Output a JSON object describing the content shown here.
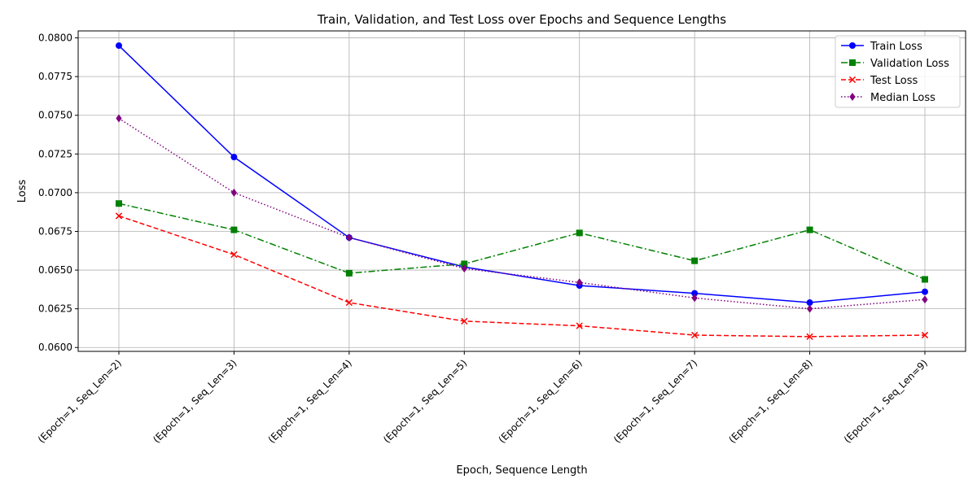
{
  "chart_data": {
    "type": "line",
    "title": "Train, Validation, and Test Loss over Epochs and Sequence Lengths",
    "xlabel": "Epoch, Sequence Length",
    "ylabel": "Loss",
    "categories": [
      "(Epoch=1, Seq_Len=2)",
      "(Epoch=1, Seq_Len=3)",
      "(Epoch=1, Seq_Len=4)",
      "(Epoch=1, Seq_Len=5)",
      "(Epoch=1, Seq_Len=6)",
      "(Epoch=1, Seq_Len=7)",
      "(Epoch=1, Seq_Len=8)",
      "(Epoch=1, Seq_Len=9)"
    ],
    "ylim": [
      0.05975,
      0.08045
    ],
    "yticks": [
      "0.0600",
      "0.0625",
      "0.0650",
      "0.0675",
      "0.0700",
      "0.0725",
      "0.0750",
      "0.0775",
      "0.0800"
    ],
    "grid": true,
    "legend_position": "top-right",
    "series": [
      {
        "name": "Train Loss",
        "color": "#0000ff",
        "linestyle": "solid",
        "marker": "circle",
        "values": [
          0.0795,
          0.0723,
          0.0671,
          0.0652,
          0.064,
          0.0635,
          0.0629,
          0.0636
        ]
      },
      {
        "name": "Validation Loss",
        "color": "#008000",
        "linestyle": "dashdot",
        "marker": "square",
        "values": [
          0.0693,
          0.0676,
          0.0648,
          0.0654,
          0.0674,
          0.0656,
          0.0676,
          0.0644
        ]
      },
      {
        "name": "Test Loss",
        "color": "#ff0000",
        "linestyle": "dashed",
        "marker": "x",
        "values": [
          0.0685,
          0.066,
          0.0629,
          0.0617,
          0.0614,
          0.0608,
          0.0607,
          0.0608
        ]
      },
      {
        "name": "Median Loss",
        "color": "#800080",
        "linestyle": "dotted",
        "marker": "diamond",
        "values": [
          0.0748,
          0.07,
          0.0671,
          0.0651,
          0.0642,
          0.0632,
          0.0625,
          0.0631
        ]
      }
    ]
  }
}
